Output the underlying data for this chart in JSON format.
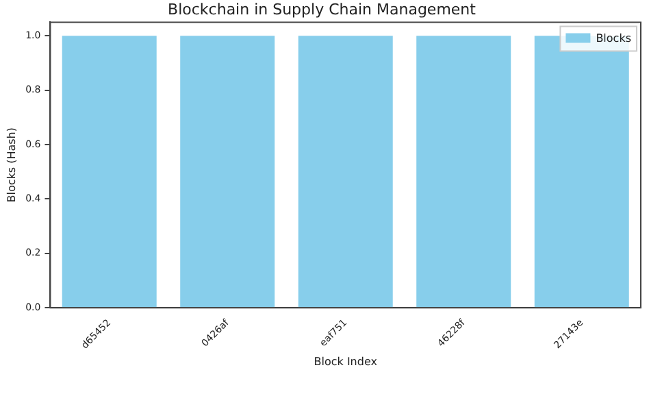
{
  "chart_data": {
    "type": "bar",
    "title": "Blockchain in Supply Chain Management",
    "xlabel": "Block Index",
    "ylabel": "Blocks (Hash)",
    "categories": [
      "d65452",
      "0426af",
      "eaf751",
      "46228f",
      "27143e"
    ],
    "series": [
      {
        "name": "Blocks",
        "color": "#87ceeb",
        "values": [
          1,
          1,
          1,
          1,
          1
        ]
      }
    ],
    "ylim": [
      0,
      1.05
    ],
    "yticks": [
      {
        "value": 0,
        "label": "0.0"
      },
      {
        "value": 0.2,
        "label": "0.2"
      },
      {
        "value": 0.4,
        "label": "0.4"
      },
      {
        "value": 0.6,
        "label": "0.6"
      },
      {
        "value": 0.8,
        "label": "0.8"
      },
      {
        "value": 1,
        "label": "1.0"
      }
    ],
    "grid": false,
    "legend": "top right"
  }
}
